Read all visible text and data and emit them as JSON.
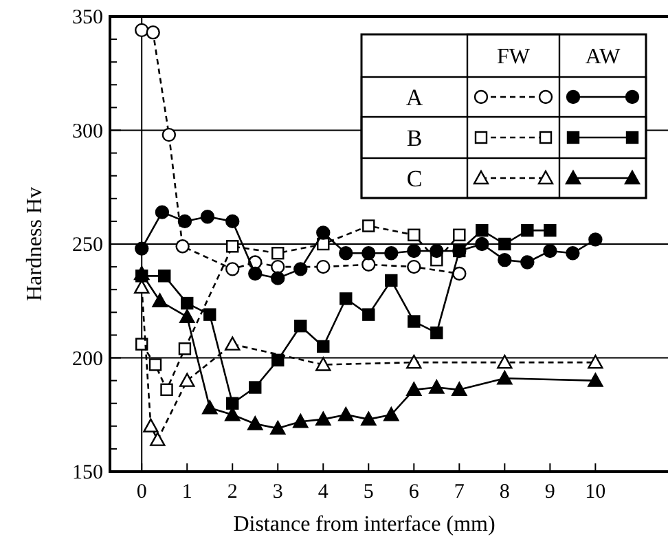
{
  "chart_data": {
    "type": "line",
    "xlabel": "Distance from interface (mm)",
    "ylabel": "Hardness Hv",
    "xlim": [
      -0.7,
      11.6
    ],
    "xticks": [
      0,
      1,
      2,
      3,
      4,
      5,
      6,
      7,
      8,
      9,
      10
    ],
    "ylim": [
      150,
      350
    ],
    "yticks": [
      150,
      {
        "value": 160,
        "label": null
      },
      {
        "value": 170,
        "label": null
      },
      {
        "value": 180,
        "label": null
      },
      {
        "value": 190,
        "label": null
      },
      200,
      {
        "value": 210,
        "label": null
      },
      {
        "value": 220,
        "label": null
      },
      {
        "value": 230,
        "label": null
      },
      {
        "value": 240,
        "label": null
      },
      250,
      {
        "value": 260,
        "label": null
      },
      {
        "value": 270,
        "label": null
      },
      {
        "value": 280,
        "label": null
      },
      {
        "value": 290,
        "label": null
      },
      300,
      {
        "value": 310,
        "label": null
      },
      {
        "value": 320,
        "label": null
      },
      {
        "value": 330,
        "label": null
      },
      {
        "value": 340,
        "label": null
      },
      350
    ],
    "grid": "y",
    "legend": "top right",
    "annotations": [
      "FW",
      "AW"
    ],
    "ref_lines": [
      {
        "axis": "x",
        "value": 0
      }
    ],
    "series": [
      {
        "name": "A",
        "color": "#000000",
        "marker": "circle",
        "line_style": "dashed",
        "x": [
          0,
          0.25,
          0.6,
          0.9,
          2,
          2.5,
          3,
          4,
          5,
          6,
          7
        ],
        "values": [
          344,
          343,
          298,
          249,
          239,
          242,
          240,
          240,
          241,
          240,
          237
        ]
      },
      {
        "name": "B",
        "color": "#000000",
        "marker": "square",
        "line_style": "dashed",
        "x": [
          0,
          0.3,
          0.55,
          0.95,
          2,
          3,
          4,
          5,
          6,
          6.5,
          7
        ],
        "values": [
          206,
          197,
          186,
          204,
          249,
          246,
          250,
          258,
          254,
          243,
          254
        ]
      },
      {
        "name": "C",
        "color": "#000000",
        "marker": "triangle",
        "line_style": "dashed",
        "x": [
          0,
          0.2,
          0.35,
          1,
          2,
          4,
          6,
          8,
          10
        ],
        "values": [
          231,
          170,
          164,
          190,
          206,
          197,
          198,
          198,
          198
        ]
      },
      {
        "color": "#000000",
        "marker": "circle",
        "line_style": "solid",
        "x": [
          0,
          0.45,
          0.95,
          1.45,
          2,
          2.5,
          3,
          3.5,
          4,
          4.5,
          5,
          5.5,
          6,
          6.5,
          7,
          7.5,
          8,
          8.5,
          9,
          9.5,
          10
        ],
        "values": [
          248,
          264,
          260,
          262,
          260,
          237,
          235,
          239,
          255,
          246,
          246,
          246,
          247,
          247,
          247,
          250,
          243,
          242,
          247,
          246,
          252
        ]
      },
      {
        "color": "#000000",
        "marker": "square",
        "line_style": "solid",
        "x": [
          0,
          0.5,
          1,
          1.5,
          2,
          2.5,
          3,
          3.5,
          4,
          4.5,
          5,
          5.5,
          6,
          6.5,
          7,
          7.5,
          8,
          8.5,
          9
        ],
        "values": [
          236,
          236,
          224,
          219,
          180,
          187,
          199,
          214,
          205,
          226,
          219,
          234,
          216,
          211,
          247,
          256,
          250,
          256,
          256
        ]
      },
      {
        "color": "#000000",
        "marker": "triangle",
        "line_style": "solid",
        "x": [
          0,
          0.4,
          1,
          1.5,
          2,
          2.5,
          3,
          3.5,
          4,
          4.5,
          5,
          5.5,
          6,
          6.5,
          7,
          8,
          10
        ],
        "values": [
          237,
          225,
          218,
          178,
          175,
          171,
          169,
          172,
          173,
          175,
          173,
          175,
          186,
          187,
          186,
          191,
          190
        ]
      }
    ]
  }
}
